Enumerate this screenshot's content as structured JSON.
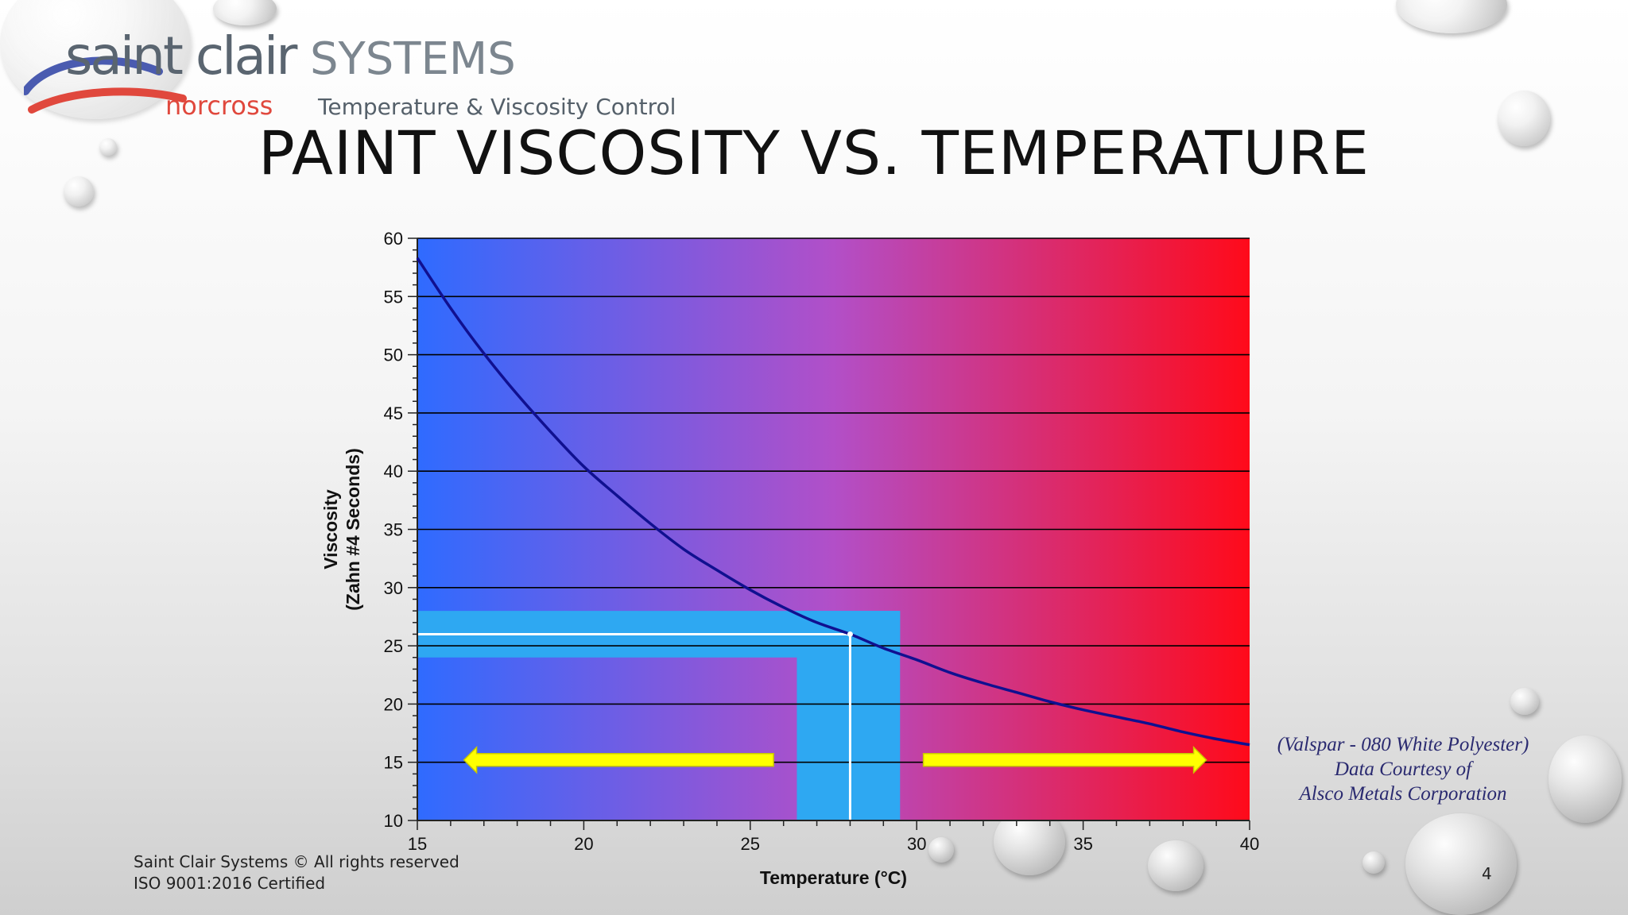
{
  "logo": {
    "brand_part1": "saint clair",
    "brand_part2": "SYSTEMS",
    "sub_brand": "norcross",
    "tagline": "Temperature & Viscosity Control"
  },
  "slide": {
    "title": "PAINT VISCOSITY VS. TEMPERATURE",
    "source_lines": [
      "(Valspar - 080 White Polyester)",
      "Data Courtesy of",
      "Alsco Metals Corporation"
    ],
    "footer_lines": [
      "Saint Clair Systems © All rights reserved",
      "ISO 9001:2016 Certified"
    ],
    "page_number": "4"
  },
  "colors": {
    "cold": "#2f6bff",
    "hot": "#ff0a1a",
    "curve": "#101090",
    "control_band": "#2ea8f2",
    "arrow": "#ffff00"
  },
  "chart_data": {
    "type": "line",
    "xlabel": "Temperature (°C)",
    "ylabel": "Viscosity (Zahn #4 Seconds)",
    "ylabel_lines": [
      "Viscosity",
      "(Zahn #4 Seconds)"
    ],
    "xlim": [
      15,
      40
    ],
    "ylim": [
      10,
      60
    ],
    "x_ticks": [
      15,
      20,
      25,
      30,
      35,
      40
    ],
    "y_ticks": [
      10,
      15,
      20,
      25,
      30,
      35,
      40,
      45,
      50,
      55,
      60
    ],
    "grid": "horizontal",
    "series": [
      {
        "x": [
          15,
          16,
          17,
          18,
          19,
          20,
          21,
          22,
          23,
          24,
          25,
          26,
          27,
          28,
          29,
          30,
          31,
          32,
          33,
          34,
          35,
          36,
          37,
          38,
          39,
          40
        ],
        "values": [
          58.3,
          54.0,
          50.1,
          46.6,
          43.4,
          40.4,
          37.9,
          35.5,
          33.3,
          31.5,
          29.8,
          28.3,
          27.0,
          26.0,
          24.8,
          23.8,
          22.7,
          21.8,
          21.0,
          20.2,
          19.5,
          18.9,
          18.3,
          17.6,
          17.0,
          16.5
        ]
      }
    ],
    "target": {
      "temperature": 28,
      "viscosity": 26
    },
    "control_band": {
      "temperature_range": [
        26.4,
        29.5
      ],
      "viscosity_range": [
        24,
        28
      ]
    },
    "annotations": [
      {
        "type": "arrow",
        "direction": "left",
        "x_range": [
          16.4,
          25.7
        ],
        "y": 15.2
      },
      {
        "type": "arrow",
        "direction": "right",
        "x_range": [
          30.2,
          38.7
        ],
        "y": 15.2
      }
    ]
  }
}
